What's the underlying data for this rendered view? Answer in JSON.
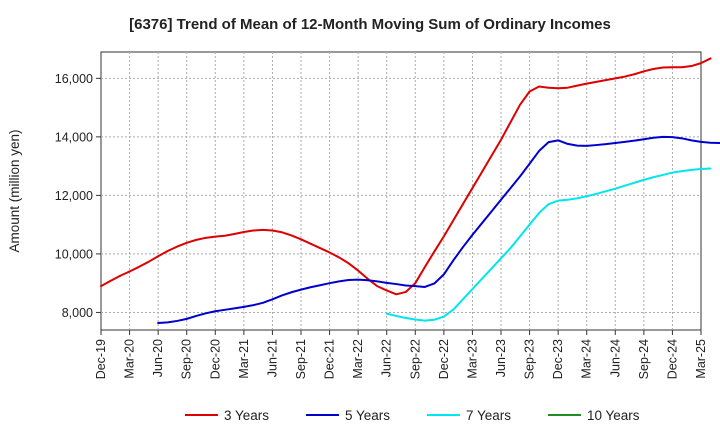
{
  "chart_data": {
    "type": "line",
    "title": "[6376]  Trend of Mean of 12-Month Moving Sum of Ordinary Incomes",
    "xlabel": "",
    "ylabel": "Amount (million yen)",
    "ylim": [
      7400,
      16900
    ],
    "y_ticks": [
      8000,
      10000,
      12000,
      14000,
      16000
    ],
    "y_tick_labels": [
      "8,000",
      "10,000",
      "12,000",
      "14,000",
      "16,000"
    ],
    "x_tick_labels": [
      "Dec-19",
      "Mar-20",
      "Jun-20",
      "Sep-20",
      "Dec-20",
      "Mar-21",
      "Jun-21",
      "Sep-21",
      "Dec-21",
      "Mar-22",
      "Jun-22",
      "Sep-22",
      "Dec-22",
      "Mar-23",
      "Jun-23",
      "Sep-23",
      "Dec-23",
      "Mar-24",
      "Jun-24",
      "Sep-24",
      "Dec-24",
      "Mar-25"
    ],
    "grid": true,
    "legend_position": "bottom",
    "series": [
      {
        "name": "3 Years",
        "color": "#dd0000",
        "start_index": 0,
        "values": [
          8900,
          9080,
          9250,
          9400,
          9560,
          9730,
          9920,
          10100,
          10250,
          10380,
          10480,
          10550,
          10590,
          10620,
          10680,
          10750,
          10800,
          10820,
          10800,
          10740,
          10630,
          10500,
          10350,
          10200,
          10050,
          9880,
          9680,
          9430,
          9150,
          8900,
          8750,
          8620,
          8700,
          9000,
          9550,
          10080,
          10600,
          11150,
          11700,
          12250,
          12800,
          13350,
          13900,
          14500,
          15100,
          15550,
          15720,
          15680,
          15660,
          15680,
          15750,
          15820,
          15880,
          15940,
          16000,
          16060,
          16140,
          16240,
          16320,
          16370,
          16380,
          16380,
          16420,
          16520,
          16680
        ]
      },
      {
        "name": "5 Years",
        "color": "#0000cc",
        "start_index": 6,
        "values": [
          7640,
          7660,
          7710,
          7780,
          7880,
          7970,
          8040,
          8090,
          8140,
          8190,
          8250,
          8330,
          8450,
          8580,
          8690,
          8780,
          8860,
          8930,
          9000,
          9060,
          9110,
          9120,
          9100,
          9060,
          9010,
          8970,
          8920,
          8900,
          8870,
          8990,
          9300,
          9780,
          10230,
          10650,
          11050,
          11450,
          11850,
          12250,
          12650,
          13080,
          13520,
          13820,
          13880,
          13760,
          13700,
          13690,
          13720,
          13750,
          13790,
          13830,
          13870,
          13920,
          13970,
          14000,
          13990,
          13950,
          13880,
          13830,
          13800,
          13790
        ]
      },
      {
        "name": "7 Years",
        "color": "#00e5ee",
        "start_index": 30,
        "values": [
          7960,
          7880,
          7810,
          7760,
          7720,
          7750,
          7860,
          8100,
          8450,
          8800,
          9150,
          9500,
          9850,
          10200,
          10600,
          11000,
          11400,
          11700,
          11820,
          11850,
          11900,
          11970,
          12050,
          12140,
          12230,
          12330,
          12430,
          12530,
          12620,
          12700,
          12780,
          12830,
          12870,
          12900,
          12920
        ]
      },
      {
        "name": "10 Years",
        "color": "#228b22",
        "start_index": 0,
        "values": []
      }
    ]
  }
}
